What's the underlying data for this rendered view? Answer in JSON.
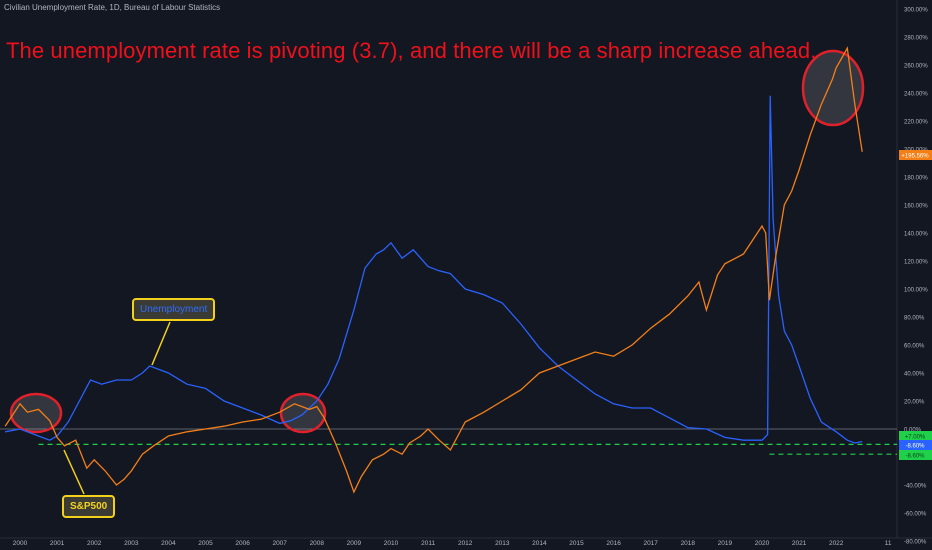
{
  "source": "Civilian Unemployment Rate, 1D, Bureau of Labour Statistics",
  "headline": "The unemployment rate  is pivoting (3.7), and there will be a sharp increase ahead.",
  "callouts": {
    "unemployment": "Unemployment",
    "sp500": "S&P500"
  },
  "badges": {
    "sp500_last": "+195.56%",
    "b1": "+7.00%",
    "b2": "-8.60%",
    "b3": "-8.60%"
  },
  "colors": {
    "background": "#131722",
    "unemployment": "#2962ff",
    "sp500": "#f57f17",
    "headline": "#f0101a",
    "highlight": "#e0212b",
    "callout_border": "#f3d11b",
    "dashed": "#1fd14a"
  },
  "chart_data": {
    "type": "line",
    "title": "Civilian Unemployment Rate, 1D, Bureau of Labour Statistics",
    "x_ticks": [
      "2000",
      "2001",
      "2002",
      "2003",
      "2004",
      "2005",
      "2006",
      "2007",
      "2008",
      "2009",
      "2010",
      "2011",
      "2012",
      "2013",
      "2014",
      "2015",
      "2016",
      "2017",
      "2018",
      "2019",
      "2020",
      "2021",
      "2022",
      "11"
    ],
    "y_ticks": [
      "300.00%",
      "280.00%",
      "260.00%",
      "240.00%",
      "220.00%",
      "200.00%",
      "180.00%",
      "160.00%",
      "140.00%",
      "120.00%",
      "100.00%",
      "80.00%",
      "60.00%",
      "40.00%",
      "20.00%",
      "0.00%",
      "-20.00%",
      "-40.00%",
      "-60.00%",
      "-80.00%"
    ],
    "ylim": [
      -85,
      300
    ],
    "xlim": [
      1999.6,
      2023.5
    ],
    "grid": false,
    "series": [
      {
        "name": "Unemployment",
        "color": "#2962ff",
        "x": [
          1999.6,
          2000.0,
          2000.5,
          2000.8,
          2001.0,
          2001.3,
          2001.6,
          2001.9,
          2002.2,
          2002.6,
          2003.0,
          2003.3,
          2003.5,
          2004.0,
          2004.5,
          2005.0,
          2005.5,
          2006.0,
          2006.5,
          2007.0,
          2007.3,
          2007.6,
          2008.0,
          2008.3,
          2008.6,
          2009.0,
          2009.3,
          2009.6,
          2009.8,
          2010.0,
          2010.3,
          2010.6,
          2011.0,
          2011.3,
          2011.6,
          2012.0,
          2012.5,
          2013.0,
          2013.5,
          2014.0,
          2014.5,
          2015.0,
          2015.5,
          2016.0,
          2016.5,
          2017.0,
          2017.5,
          2018.0,
          2018.5,
          2019.0,
          2019.5,
          2020.0,
          2020.15,
          2020.22,
          2020.3,
          2020.45,
          2020.6,
          2020.8,
          2021.0,
          2021.3,
          2021.6,
          2022.0,
          2022.3,
          2022.5,
          2022.7
        ],
        "values": [
          -2,
          0,
          -5,
          -8,
          -5,
          5,
          20,
          35,
          32,
          35,
          35,
          40,
          45,
          40,
          32,
          29,
          20,
          15,
          10,
          4,
          6,
          10,
          20,
          32,
          50,
          85,
          115,
          125,
          128,
          133,
          122,
          128,
          116,
          113,
          111,
          100,
          96,
          90,
          75,
          58,
          45,
          35,
          25,
          18,
          15,
          15,
          8,
          1,
          0,
          -6,
          -8,
          -8,
          -4,
          238,
          150,
          95,
          70,
          60,
          45,
          22,
          5,
          -2,
          -8,
          -10,
          -9
        ]
      },
      {
        "name": "S&P500",
        "color": "#f57f17",
        "x": [
          1999.6,
          1999.8,
          2000.0,
          2000.2,
          2000.5,
          2000.8,
          2001.0,
          2001.2,
          2001.5,
          2001.8,
          2002.0,
          2002.3,
          2002.6,
          2002.8,
          2003.0,
          2003.3,
          2003.6,
          2004.0,
          2004.5,
          2005.0,
          2005.5,
          2006.0,
          2006.5,
          2007.0,
          2007.4,
          2007.8,
          2008.0,
          2008.2,
          2008.5,
          2008.8,
          2009.0,
          2009.2,
          2009.5,
          2009.8,
          2010.0,
          2010.3,
          2010.5,
          2010.8,
          2011.0,
          2011.3,
          2011.6,
          2012.0,
          2012.5,
          2013.0,
          2013.5,
          2014.0,
          2014.5,
          2015.0,
          2015.5,
          2016.0,
          2016.5,
          2017.0,
          2017.5,
          2018.0,
          2018.3,
          2018.5,
          2018.8,
          2019.0,
          2019.5,
          2020.0,
          2020.1,
          2020.2,
          2020.35,
          2020.6,
          2020.8,
          2021.0,
          2021.3,
          2021.6,
          2021.9,
          2022.0,
          2022.15,
          2022.3,
          2022.5,
          2022.7
        ],
        "values": [
          2,
          10,
          18,
          12,
          14,
          6,
          -6,
          -12,
          -8,
          -28,
          -22,
          -30,
          -40,
          -36,
          -30,
          -18,
          -12,
          -5,
          -2,
          0,
          2,
          5,
          7,
          12,
          18,
          14,
          16,
          8,
          -10,
          -30,
          -45,
          -34,
          -22,
          -18,
          -14,
          -18,
          -10,
          -5,
          0,
          -8,
          -15,
          5,
          12,
          20,
          28,
          40,
          45,
          50,
          55,
          52,
          60,
          72,
          82,
          95,
          105,
          85,
          110,
          118,
          125,
          145,
          140,
          92,
          120,
          160,
          170,
          185,
          210,
          232,
          250,
          258,
          265,
          272,
          232,
          198
        ]
      }
    ]
  }
}
